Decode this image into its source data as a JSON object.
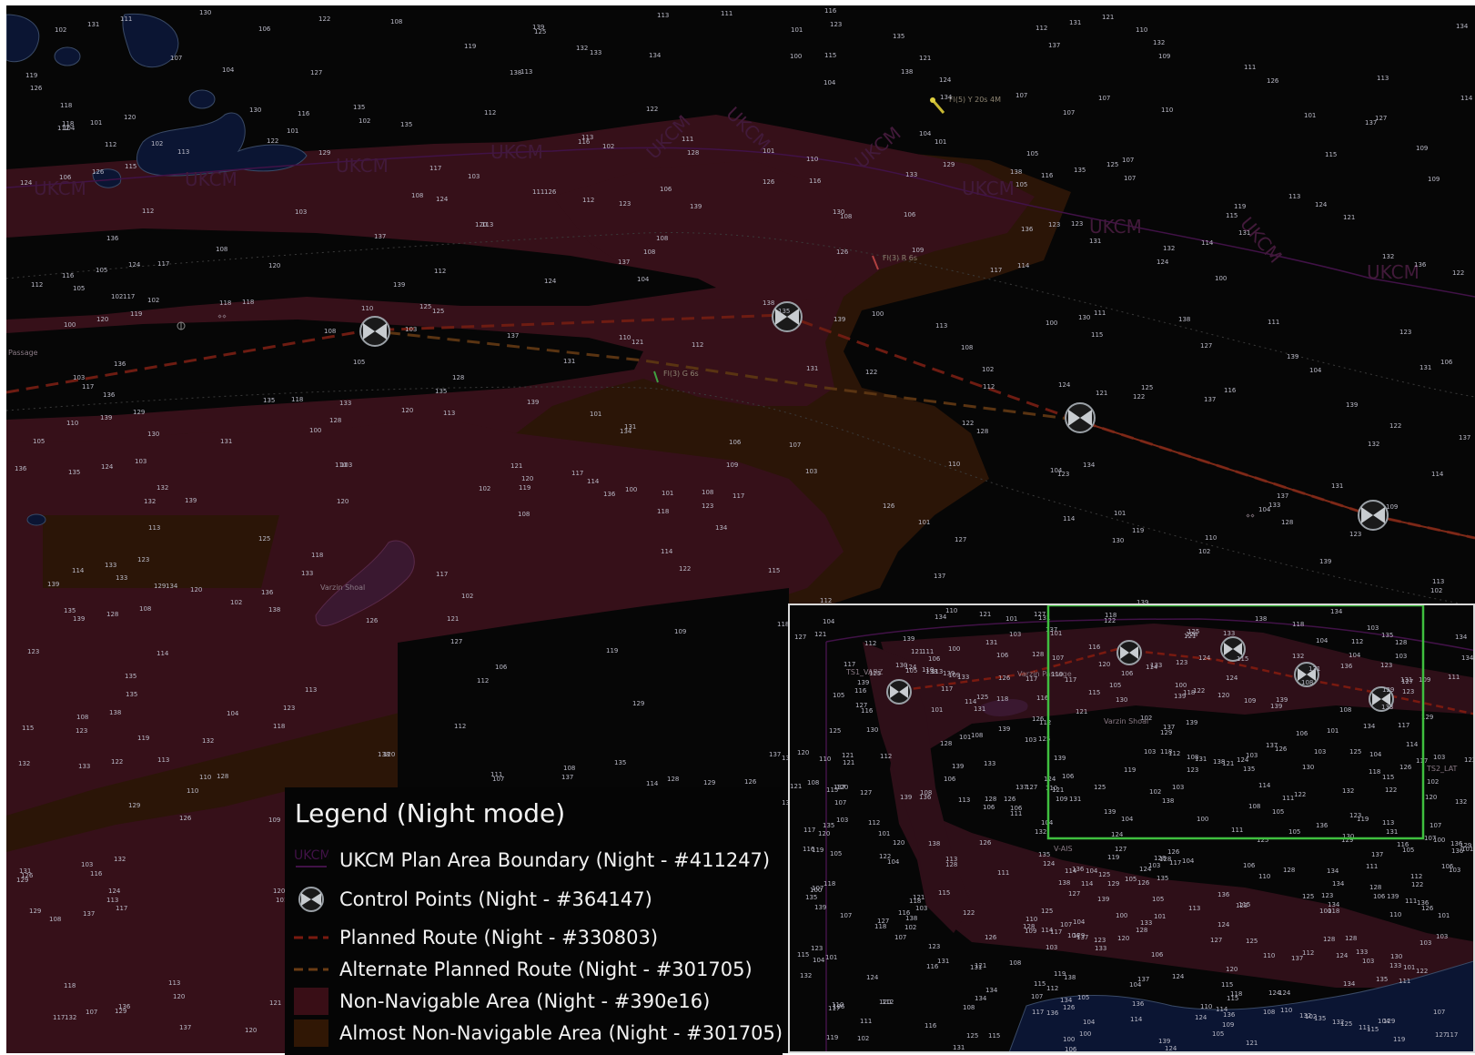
{
  "map": {
    "boundary_label": "UKCM",
    "place_labels": [
      "Passage",
      "Varzin Shoal"
    ],
    "light_labels": [
      "Fl(5) Y 20s 4M",
      "Fl(3) R 6s",
      "Fl(3) G 6s"
    ],
    "colors": {
      "background": "#060606",
      "boundary": "#411247",
      "control_point": "#364147",
      "planned_route": "#330803",
      "alternate_route": "#301705",
      "non_navigable": "#390e16",
      "almost_non_navigable": "#301705",
      "land": "#0b1533",
      "inset_frame": "#3fbf3f"
    }
  },
  "legend": {
    "title": "Legend (Night mode)",
    "items": [
      {
        "label": "UKCM Plan Area Boundary (Night - #411247)",
        "swatch": "boundary-icon"
      },
      {
        "label": "Control Points (Night - #364147)",
        "swatch": "control-point-icon"
      },
      {
        "label": "Planned Route (Night - #330803)",
        "swatch": "dashed-line-red-icon"
      },
      {
        "label": "Alternate Planned Route (Night - #301705)",
        "swatch": "dashed-line-brown-icon"
      },
      {
        "label": "Non-Navigable Area (Night - #390e16)",
        "swatch": "fill-maroon-icon"
      },
      {
        "label": "Almost Non-Navigable Area (Night - #301705)",
        "swatch": "fill-brown-icon"
      }
    ]
  },
  "inset": {
    "labels": [
      "TS1_VARZ",
      "Varzin Passage",
      "Varzin Shoal",
      "V-AIS",
      "TS2_LAT"
    ]
  }
}
